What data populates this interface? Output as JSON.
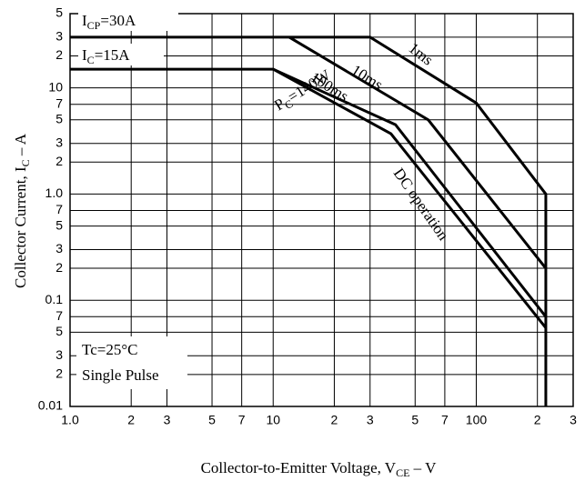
{
  "chart_data": {
    "type": "line",
    "x_label": [
      "Collector-to-Emitter Voltage, V",
      "CE",
      " – V"
    ],
    "y_label": [
      "Collector Current, I",
      "C",
      " – A"
    ],
    "log_x": true,
    "log_y": true,
    "grid": true,
    "xlim": [
      1,
      300
    ],
    "ylim": [
      0.01,
      50
    ],
    "xticks": [
      {
        "value": 1,
        "label": "1.0"
      },
      2,
      3,
      5,
      7,
      10,
      {
        "value": 20,
        "label": "2"
      },
      {
        "value": 30,
        "label": "3"
      },
      {
        "value": 50,
        "label": "5"
      },
      {
        "value": 70,
        "label": "7"
      },
      100,
      {
        "value": 200,
        "label": "2"
      },
      {
        "value": 300,
        "label": "3"
      }
    ],
    "yticks": [
      {
        "value": 50,
        "label": "5"
      },
      {
        "value": 30,
        "label": "3"
      },
      {
        "value": 20,
        "label": "2"
      },
      10,
      7,
      5,
      3,
      2,
      {
        "value": 1,
        "label": "1.0"
      },
      {
        "value": 0.7,
        "label": "7"
      },
      {
        "value": 0.5,
        "label": "5"
      },
      {
        "value": 0.3,
        "label": "3"
      },
      {
        "value": 0.2,
        "label": "2"
      },
      0.1,
      {
        "value": 0.07,
        "label": "7"
      },
      {
        "value": 0.05,
        "label": "5"
      },
      {
        "value": 0.03,
        "label": "3"
      },
      {
        "value": 0.02,
        "label": "2"
      },
      0.01
    ],
    "series": [
      {
        "name": "1ms",
        "color": "#000000",
        "x": [
          1,
          30,
          100,
          220,
          220
        ],
        "values": [
          30,
          30,
          7.2,
          1.0,
          0.01
        ]
      },
      {
        "name": "10ms",
        "color": "#000000",
        "x": [
          12,
          58,
          220
        ],
        "values": [
          30,
          5,
          0.2
        ]
      },
      {
        "name": "100ms",
        "color": "#000000",
        "x": [
          1,
          10,
          40,
          220
        ],
        "values": [
          15,
          15,
          4.5,
          0.07
        ]
      },
      {
        "name": "DC operation",
        "color": "#000000",
        "x": [
          10,
          38,
          220
        ],
        "values": [
          15,
          3.7,
          0.055
        ]
      }
    ],
    "annotations": [
      {
        "parts": [
          "I",
          "CP",
          "=30A"
        ]
      },
      {
        "parts": [
          "I",
          "C",
          "=15A"
        ]
      },
      {
        "parts": [
          "P",
          "C",
          "=140W"
        ]
      },
      "Tc=25°C",
      "Single Pulse"
    ]
  }
}
